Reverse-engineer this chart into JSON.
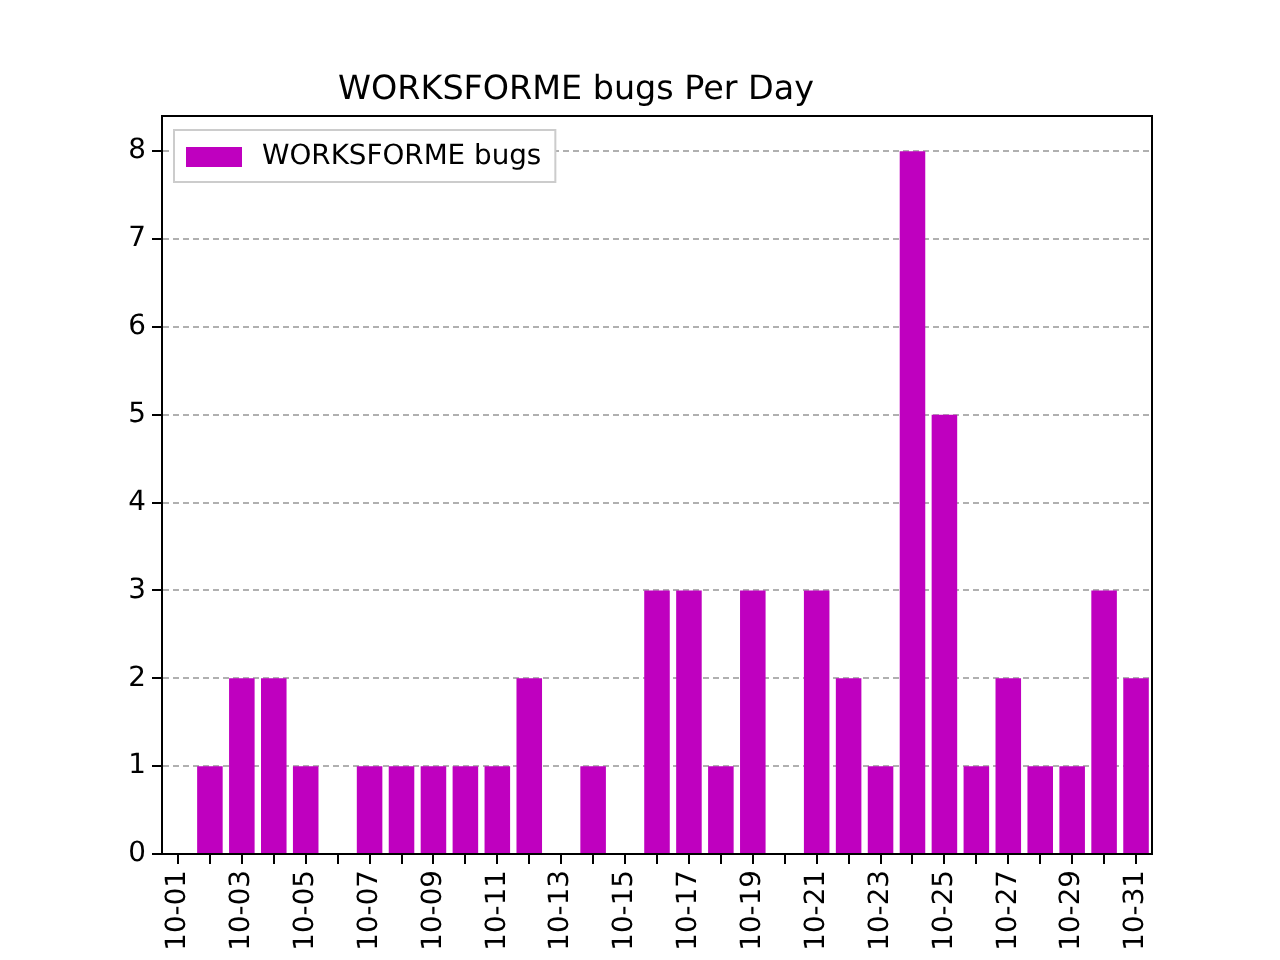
{
  "chart_data": {
    "type": "bar",
    "title": "WORKSFORME bugs Per Day",
    "categories": [
      "10-01",
      null,
      "10-03",
      null,
      "10-05",
      null,
      "10-07",
      null,
      "10-09",
      null,
      "10-11",
      null,
      "10-13",
      null,
      "10-15",
      null,
      "10-17",
      null,
      "10-19",
      null,
      "10-21",
      null,
      "10-23",
      null,
      "10-25",
      null,
      "10-27",
      null,
      "10-29",
      null,
      "10-31"
    ],
    "series": [
      {
        "name": "WORKSFORME bugs",
        "color": "#bf00bf",
        "values": [
          0,
          1,
          2,
          2,
          1,
          0,
          1,
          1,
          1,
          1,
          1,
          2,
          0,
          1,
          0,
          3,
          3,
          1,
          3,
          0,
          3,
          2,
          1,
          8,
          5,
          1,
          2,
          1,
          1,
          3,
          2
        ]
      }
    ],
    "ylim": [
      0,
      8.4
    ],
    "yticks": [
      0,
      1,
      2,
      3,
      4,
      5,
      6,
      7,
      8
    ],
    "grid": "y",
    "legend": "top left"
  }
}
